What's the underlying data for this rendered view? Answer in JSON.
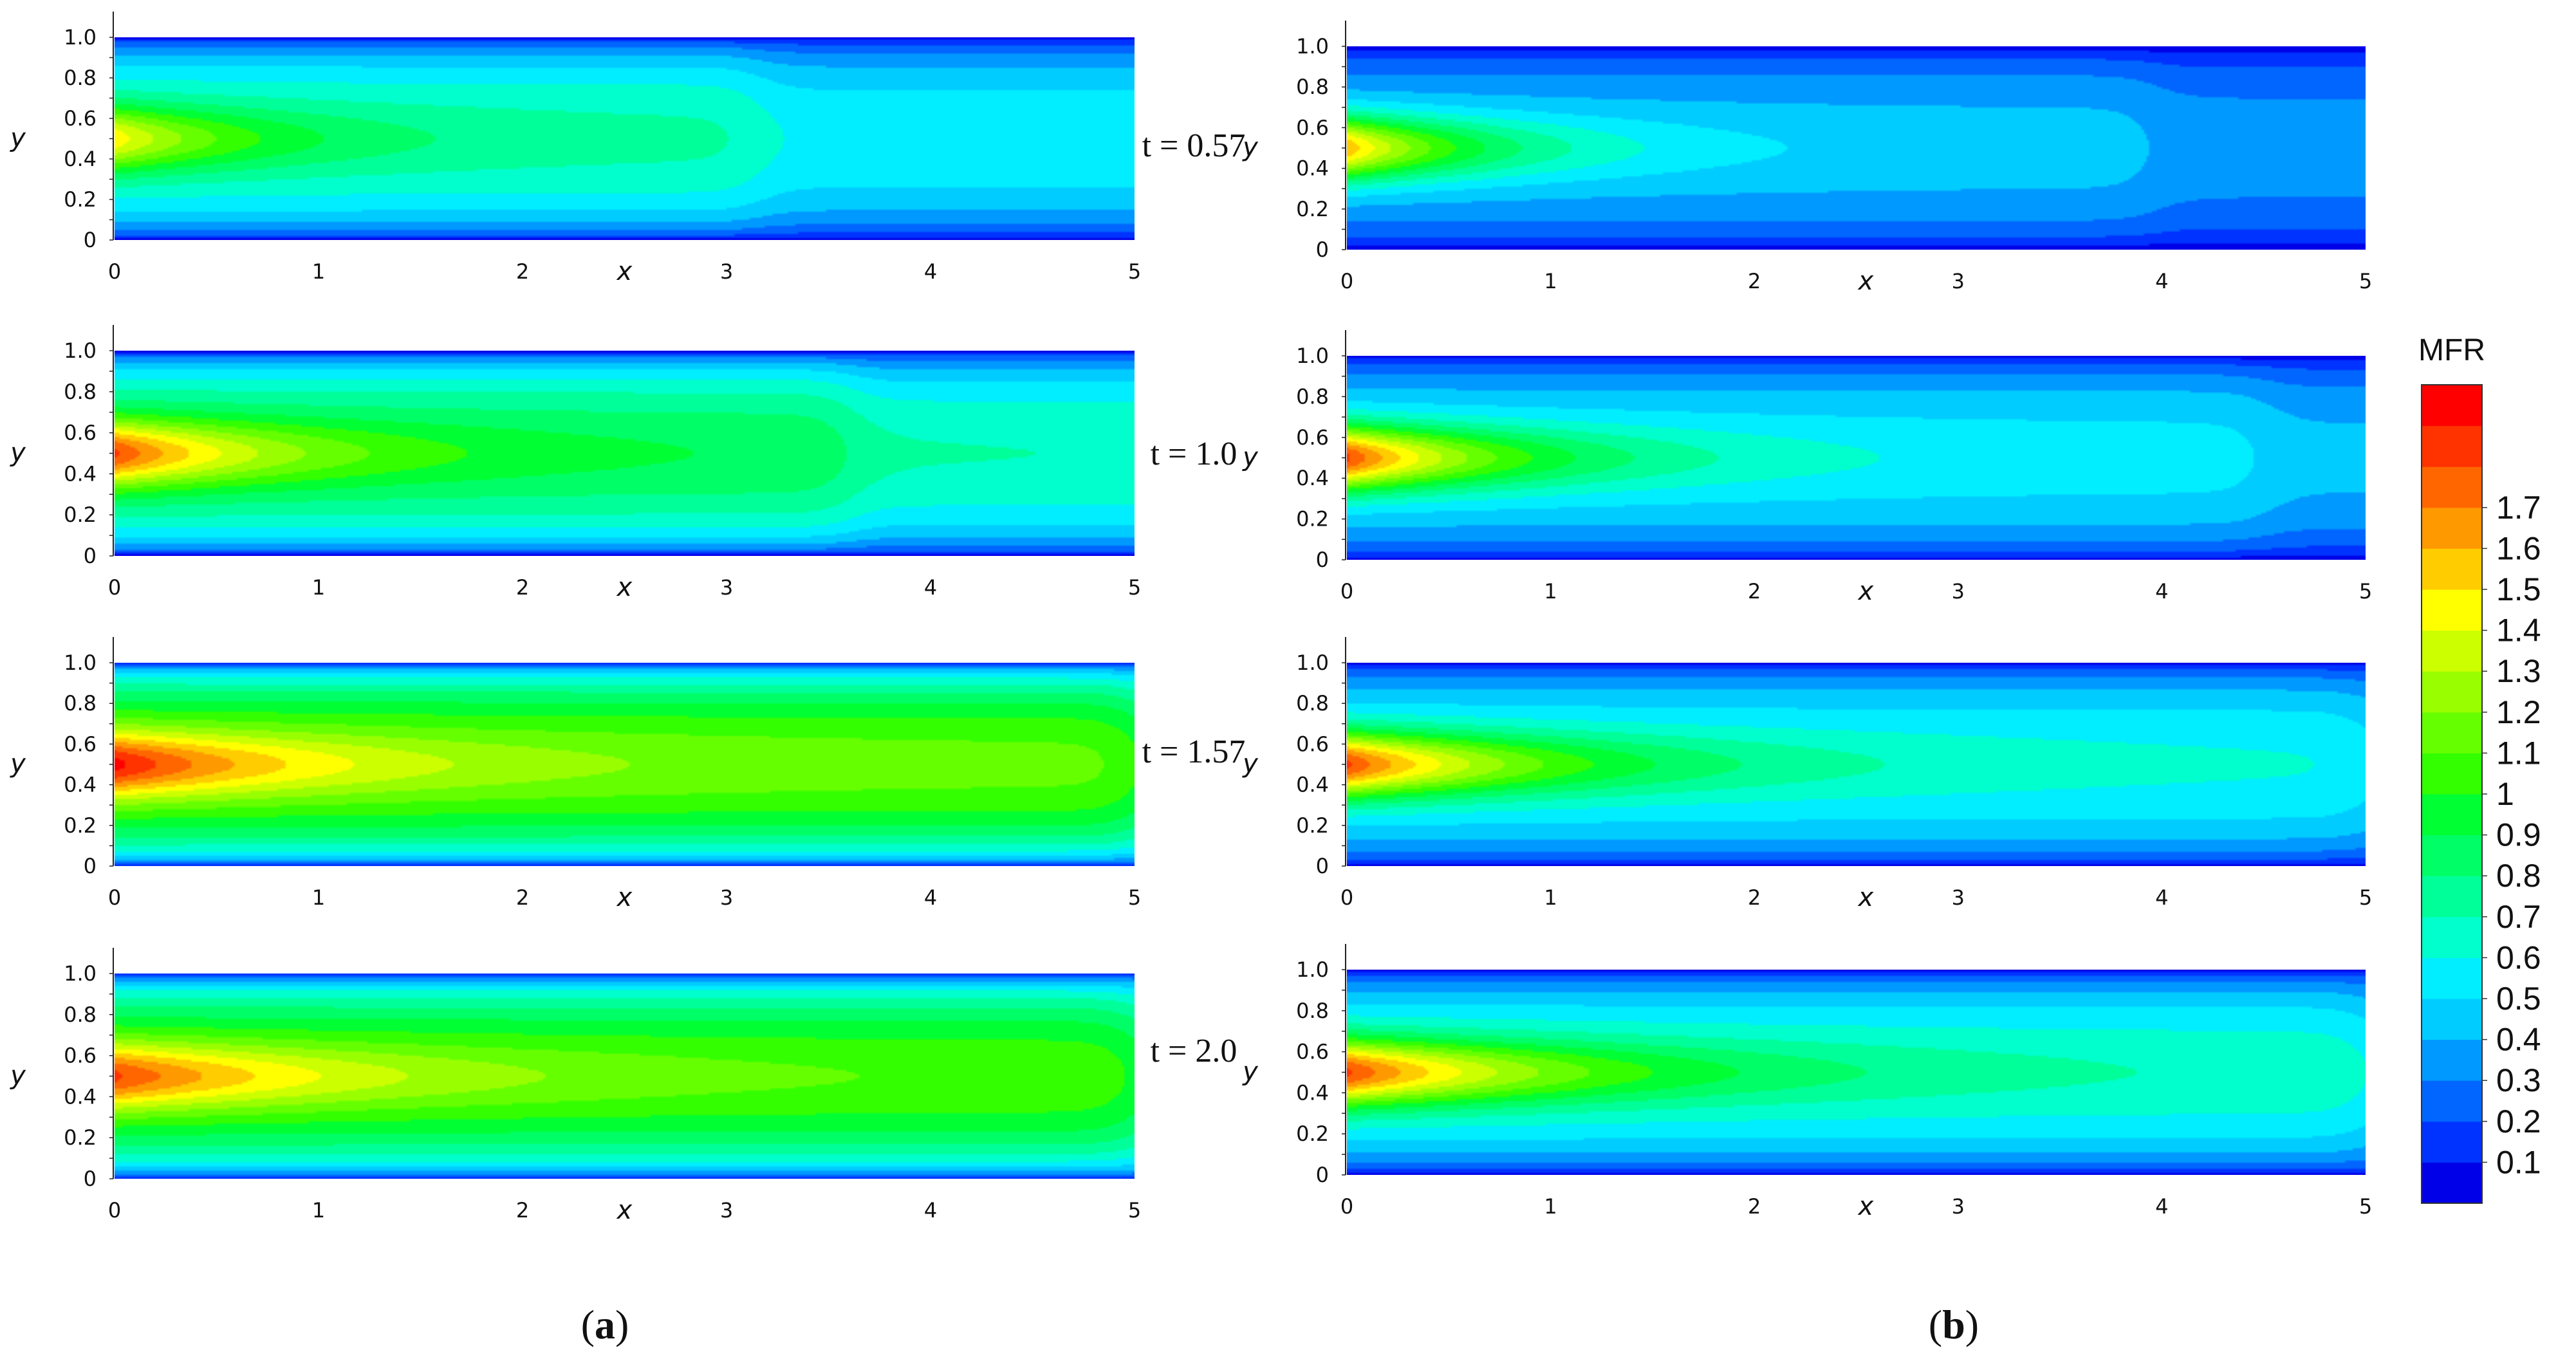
{
  "chart_data": {
    "type": "heatmap",
    "figure_title": "",
    "colorbar": {
      "title": "MFR",
      "levels": [
        0.1,
        0.2,
        0.3,
        0.4,
        0.5,
        0.6,
        0.7,
        0.8,
        0.9,
        1,
        1.1,
        1.2,
        1.3,
        1.4,
        1.5,
        1.6,
        1.7
      ],
      "level_labels": [
        "0.1",
        "0.2",
        "0.3",
        "0.4",
        "0.5",
        "0.6",
        "0.7",
        "0.8",
        "0.9",
        "1",
        "1.1",
        "1.2",
        "1.3",
        "1.4",
        "1.5",
        "1.6",
        "1.7"
      ],
      "colors": [
        "#0000e8",
        "#0033ff",
        "#0066ff",
        "#0099ff",
        "#00ccff",
        "#00eeff",
        "#00ffcc",
        "#00ff99",
        "#00ff66",
        "#00ff33",
        "#33ff00",
        "#66ff00",
        "#99ff00",
        "#ccff00",
        "#ffff00",
        "#ffcc00",
        "#ff9900",
        "#ff6600",
        "#ff3300",
        "#ff0000"
      ]
    },
    "axes": {
      "xlabel": "x",
      "ylabel": "y",
      "xlim": [
        0,
        5
      ],
      "ylim": [
        0,
        1
      ],
      "xticks": [
        "0",
        "1",
        "2",
        "3",
        "4",
        "5"
      ],
      "yticks": [
        "0",
        "0.2",
        "0.4",
        "0.6",
        "0.8",
        "1.0"
      ]
    },
    "time_labels": [
      "t = 0.57",
      "t = 1.0",
      "t = 1.57",
      "t = 2.0"
    ],
    "panel_labels": [
      {
        "open": "(",
        "letter": "a",
        "close": ")"
      },
      {
        "open": "(",
        "letter": "b",
        "close": ")"
      }
    ],
    "columns": [
      {
        "panel": "a",
        "rows": [
          {
            "t": 0.57,
            "inlet_peak": 1.3,
            "downstream_value": 0.65,
            "front_x": 3.15
          },
          {
            "t": 1.0,
            "inlet_peak": 1.6,
            "downstream_value": 0.78,
            "front_x": 3.6
          },
          {
            "t": 1.57,
            "inlet_peak": 1.7,
            "downstream_value": 1.0,
            "front_x": 5.0
          },
          {
            "t": 2.0,
            "inlet_peak": 1.6,
            "downstream_value": 0.95,
            "front_x": 5.0
          }
        ]
      },
      {
        "panel": "b",
        "rows": [
          {
            "t": 0.57,
            "inlet_peak": 1.4,
            "downstream_value": 0.42,
            "front_x": 3.95
          },
          {
            "t": 1.0,
            "inlet_peak": 1.6,
            "downstream_value": 0.5,
            "front_x": 4.5
          },
          {
            "t": 1.57,
            "inlet_peak": 1.6,
            "downstream_value": 0.55,
            "front_x": 5.0
          },
          {
            "t": 2.0,
            "inlet_peak": 1.6,
            "downstream_value": 0.6,
            "front_x": 5.0
          }
        ]
      }
    ]
  }
}
